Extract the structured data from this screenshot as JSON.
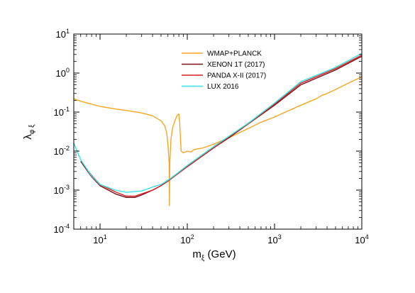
{
  "chart_data": {
    "type": "line",
    "xlabel": {
      "main": "m",
      "sub": "ξ",
      "unit": " (GeV)"
    },
    "ylabel": {
      "main": "λ",
      "sub": "φ ξ"
    },
    "x_scale": "log",
    "y_scale": "log",
    "xlim": [
      5,
      10000
    ],
    "ylim": [
      0.0001,
      10
    ],
    "x_ticks": [
      {
        "value": 10,
        "base": "10",
        "exp": "1"
      },
      {
        "value": 100,
        "base": "10",
        "exp": "2"
      },
      {
        "value": 1000,
        "base": "10",
        "exp": "3"
      },
      {
        "value": 10000,
        "base": "10",
        "exp": "4"
      }
    ],
    "y_ticks": [
      {
        "value": 0.0001,
        "base": "10",
        "exp": "-4"
      },
      {
        "value": 0.001,
        "base": "10",
        "exp": "-3"
      },
      {
        "value": 0.01,
        "base": "10",
        "exp": "-2"
      },
      {
        "value": 0.1,
        "base": "10",
        "exp": "-1"
      },
      {
        "value": 1,
        "base": "10",
        "exp": "0"
      },
      {
        "value": 10,
        "base": "10",
        "exp": "1"
      }
    ],
    "grid": false,
    "legend_position": "top-center",
    "series": [
      {
        "name": "WMAP+PLANCK",
        "color": "#f5a623",
        "points": [
          [
            5,
            0.22
          ],
          [
            6,
            0.19
          ],
          [
            8,
            0.16
          ],
          [
            10,
            0.14
          ],
          [
            15,
            0.12
          ],
          [
            20,
            0.11
          ],
          [
            30,
            0.095
          ],
          [
            40,
            0.08
          ],
          [
            50,
            0.06
          ],
          [
            55,
            0.045
          ],
          [
            58,
            0.03
          ],
          [
            60,
            0.015
          ],
          [
            62,
            0.005
          ],
          [
            62.5,
            0.0004
          ],
          [
            63,
            0.005
          ],
          [
            65,
            0.02
          ],
          [
            68,
            0.04
          ],
          [
            72,
            0.06
          ],
          [
            76,
            0.08
          ],
          [
            80,
            0.09
          ],
          [
            82,
            0.05
          ],
          [
            85,
            0.01
          ],
          [
            90,
            0.009
          ],
          [
            100,
            0.01
          ],
          [
            110,
            0.0095
          ],
          [
            120,
            0.011
          ],
          [
            150,
            0.012
          ],
          [
            200,
            0.015
          ],
          [
            300,
            0.022
          ],
          [
            400,
            0.03
          ],
          [
            500,
            0.038
          ],
          [
            700,
            0.055
          ],
          [
            1000,
            0.075
          ],
          [
            2000,
            0.15
          ],
          [
            3000,
            0.22
          ],
          [
            3500,
            0.27
          ],
          [
            4000,
            0.3
          ],
          [
            5000,
            0.38
          ],
          [
            7000,
            0.55
          ],
          [
            10000,
            0.8
          ]
        ]
      },
      {
        "name": "XENON 1T (2017)",
        "color": "#7a0f17",
        "points": [
          [
            6,
            0.0055
          ],
          [
            8,
            0.0022
          ],
          [
            10,
            0.0013
          ],
          [
            15,
            0.0008
          ],
          [
            20,
            0.00065
          ],
          [
            25,
            0.00065
          ],
          [
            30,
            0.00075
          ],
          [
            40,
            0.001
          ],
          [
            50,
            0.0013
          ],
          [
            60,
            0.0017
          ],
          [
            70,
            0.0023
          ],
          [
            100,
            0.004
          ],
          [
            200,
            0.012
          ],
          [
            300,
            0.022
          ],
          [
            500,
            0.05
          ],
          [
            1000,
            0.15
          ],
          [
            2000,
            0.5
          ],
          [
            5000,
            1.2
          ],
          [
            10000,
            2.7
          ]
        ]
      },
      {
        "name": "PANDA X-II (2017)",
        "color": "#d91e26",
        "points": [
          [
            7,
            0.0035
          ],
          [
            8,
            0.0024
          ],
          [
            10,
            0.0014
          ],
          [
            15,
            0.0009
          ],
          [
            20,
            0.0007
          ],
          [
            25,
            0.0007
          ],
          [
            30,
            0.0008
          ],
          [
            40,
            0.001
          ],
          [
            50,
            0.0013
          ],
          [
            60,
            0.0017
          ],
          [
            70,
            0.0022
          ],
          [
            100,
            0.004
          ],
          [
            200,
            0.012
          ],
          [
            300,
            0.023
          ],
          [
            500,
            0.05
          ],
          [
            1000,
            0.16
          ],
          [
            2000,
            0.55
          ],
          [
            5000,
            1.3
          ],
          [
            10000,
            2.9
          ]
        ]
      },
      {
        "name": "LUX 2016",
        "color": "#2ee6e0",
        "points": [
          [
            5,
            0.016
          ],
          [
            6,
            0.006
          ],
          [
            8,
            0.0023
          ],
          [
            10,
            0.0014
          ],
          [
            15,
            0.001
          ],
          [
            20,
            0.00088
          ],
          [
            30,
            0.00095
          ],
          [
            40,
            0.0012
          ],
          [
            50,
            0.0014
          ],
          [
            60,
            0.0018
          ],
          [
            70,
            0.0023
          ],
          [
            100,
            0.0043
          ],
          [
            200,
            0.013
          ],
          [
            300,
            0.024
          ],
          [
            500,
            0.052
          ],
          [
            1000,
            0.17
          ],
          [
            2000,
            0.6
          ],
          [
            5000,
            1.4
          ],
          [
            10000,
            3.2
          ]
        ]
      }
    ]
  }
}
